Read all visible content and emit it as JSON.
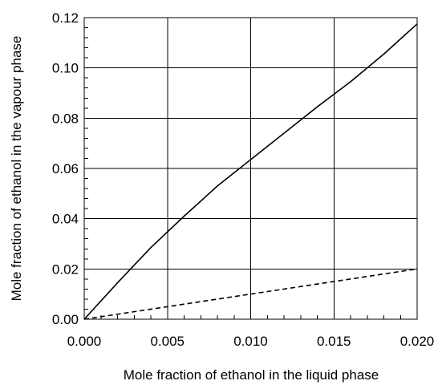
{
  "chart_data": {
    "type": "line",
    "title": "",
    "xlabel": "Mole fraction of ethanol in the liquid phase",
    "ylabel": "Mole fraction of ethanol in the vapour phase",
    "xlim": [
      0,
      0.02
    ],
    "ylim": [
      0,
      0.12
    ],
    "grid": true,
    "legend": "none",
    "x_ticks": [
      0,
      0.005,
      0.01,
      0.015,
      0.02
    ],
    "y_ticks": [
      0,
      0.02,
      0.04,
      0.06,
      0.08,
      0.1,
      0.12
    ],
    "x_tick_labels": [
      "0.000",
      "0.005",
      "0.010",
      "0.015",
      "0.020"
    ],
    "y_tick_labels": [
      "0.00",
      "0.02",
      "0.04",
      "0.06",
      "0.08",
      "0.10",
      "0.12"
    ],
    "series": [
      {
        "style": "solid",
        "color": "#000000",
        "x": [
          0,
          0.002,
          0.004,
          0.006,
          0.008,
          0.01,
          0.012,
          0.014,
          0.016,
          0.018,
          0.02
        ],
        "y": [
          0,
          0.0145,
          0.0285,
          0.041,
          0.053,
          0.0635,
          0.074,
          0.0845,
          0.0945,
          0.1055,
          0.1175
        ]
      },
      {
        "style": "dashed",
        "color": "#000000",
        "x": [
          0,
          0.02
        ],
        "y": [
          0,
          0.02
        ]
      }
    ]
  }
}
